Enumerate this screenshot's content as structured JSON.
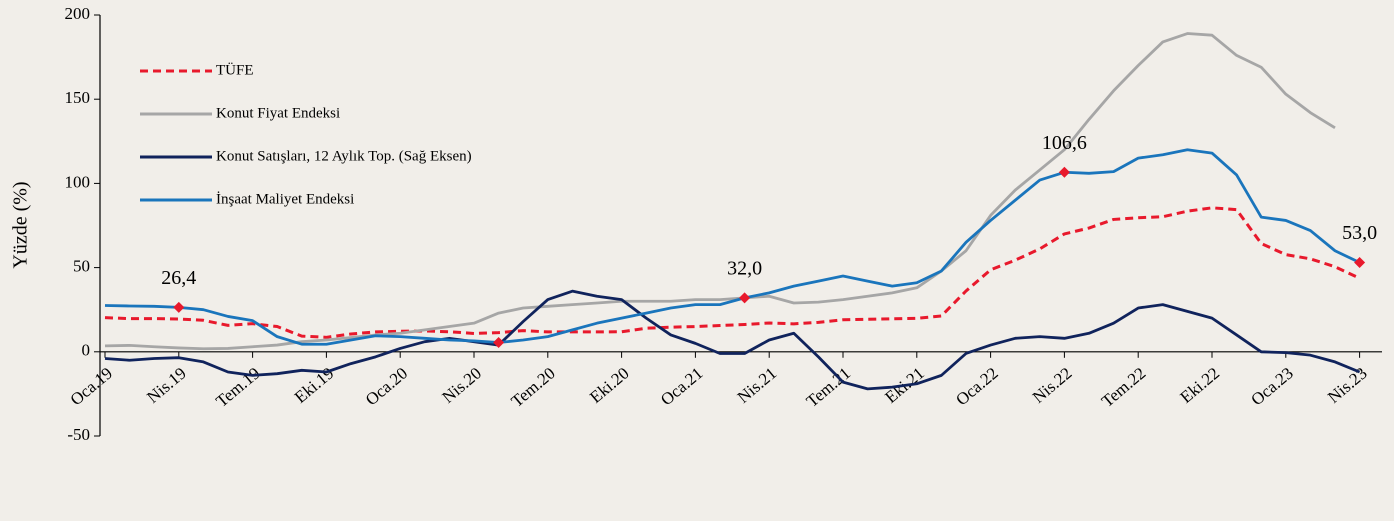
{
  "chart_data": {
    "type": "line",
    "y_label": "Yüzde (%)",
    "categories": [
      "Oca.19",
      null,
      null,
      "Nis.19",
      null,
      null,
      "Tem.19",
      null,
      null,
      "Eki.19",
      null,
      null,
      "Oca.20",
      null,
      null,
      "Nis.20",
      null,
      null,
      "Tem.20",
      null,
      null,
      "Eki.20",
      null,
      null,
      "Oca.21",
      null,
      null,
      "Nis.21",
      null,
      null,
      "Tem.21",
      null,
      null,
      "Eki.21",
      null,
      null,
      "Oca.22",
      null,
      null,
      "Nis.22",
      null,
      null,
      "Tem.22",
      null,
      null,
      "Eki.22",
      null,
      null,
      "Oca.23",
      null,
      null,
      "Nis.23"
    ],
    "ylim": [
      -50,
      200
    ],
    "yticks": [
      -50,
      0,
      50,
      100,
      150,
      200
    ],
    "series": [
      {
        "name": "TÜFE",
        "color": "#e8192c",
        "dashed": true,
        "values": [
          20.3,
          19.7,
          19.7,
          19.5,
          18.7,
          15.7,
          16.7,
          15.0,
          9.3,
          8.6,
          10.6,
          11.8,
          12.2,
          12.4,
          11.9,
          10.9,
          11.4,
          12.6,
          11.8,
          11.8,
          11.8,
          11.9,
          14.0,
          14.6,
          15.0,
          15.6,
          16.2,
          17.1,
          16.6,
          17.5,
          19.0,
          19.3,
          19.6,
          19.9,
          21.3,
          36.1,
          48.7,
          54.4,
          61.1,
          70.0,
          73.5,
          78.6,
          79.6,
          80.2,
          83.5,
          85.5,
          84.4,
          64.3,
          57.7,
          55.2,
          50.5,
          43.7
        ]
      },
      {
        "name": "Konut Fiyat Endeksi",
        "color": "#a6a6a6",
        "values": [
          3.5,
          3.8,
          3,
          2.3,
          1.8,
          2,
          3,
          4,
          6,
          7,
          8.5,
          10,
          11,
          13,
          15,
          17,
          23,
          26,
          27,
          28,
          29,
          30,
          30,
          30,
          31,
          31,
          32,
          33,
          29,
          29.5,
          31,
          33,
          35,
          38,
          48,
          60,
          81,
          96,
          108,
          120,
          138,
          155,
          170,
          184,
          189,
          188,
          176,
          169,
          153,
          142,
          133,
          null
        ]
      },
      {
        "name": "Konut Satışları, 12 Aylık Top. (Sağ Eksen)",
        "color": "#10235c",
        "values": [
          -4,
          -5,
          -4,
          -3.5,
          -6,
          -12,
          -14,
          -13,
          -11,
          -12,
          -7,
          -3,
          2,
          6,
          8,
          6,
          4,
          18,
          31,
          36,
          33,
          31,
          20,
          10,
          5,
          -1,
          -1,
          7,
          11,
          -3,
          -18,
          -22,
          -21,
          -19,
          -14,
          -1,
          4,
          8,
          9,
          8,
          11,
          17,
          26,
          28,
          24,
          20,
          10,
          0,
          -0.5,
          -2,
          -6,
          -12
        ]
      },
      {
        "name": "İnşaat Maliyet Endeksi",
        "color": "#1a75bc",
        "values": [
          27.5,
          27.2,
          27,
          26.4,
          25,
          21,
          18.5,
          9,
          4.5,
          4.5,
          7,
          9.5,
          9,
          8,
          7,
          6.5,
          5.5,
          7,
          9,
          13,
          17,
          20,
          23,
          26,
          28,
          28,
          32,
          35,
          39,
          42,
          45,
          42,
          39,
          41,
          48,
          65,
          78,
          90,
          102,
          106.6,
          106,
          107,
          115,
          117,
          120,
          118,
          105,
          80,
          78,
          72,
          60,
          53.0
        ]
      }
    ],
    "markers": [
      {
        "label": "26,4",
        "value": 26.4,
        "index": 3
      },
      {
        "value": 5.5,
        "index": 16
      },
      {
        "label": "32,0",
        "value": 32.0,
        "index": 26
      },
      {
        "label": "106,6",
        "value": 106.6,
        "index": 39
      },
      {
        "label": "53,0",
        "value": 53.0,
        "index": 51
      }
    ],
    "marker_color": "#e8192c"
  }
}
